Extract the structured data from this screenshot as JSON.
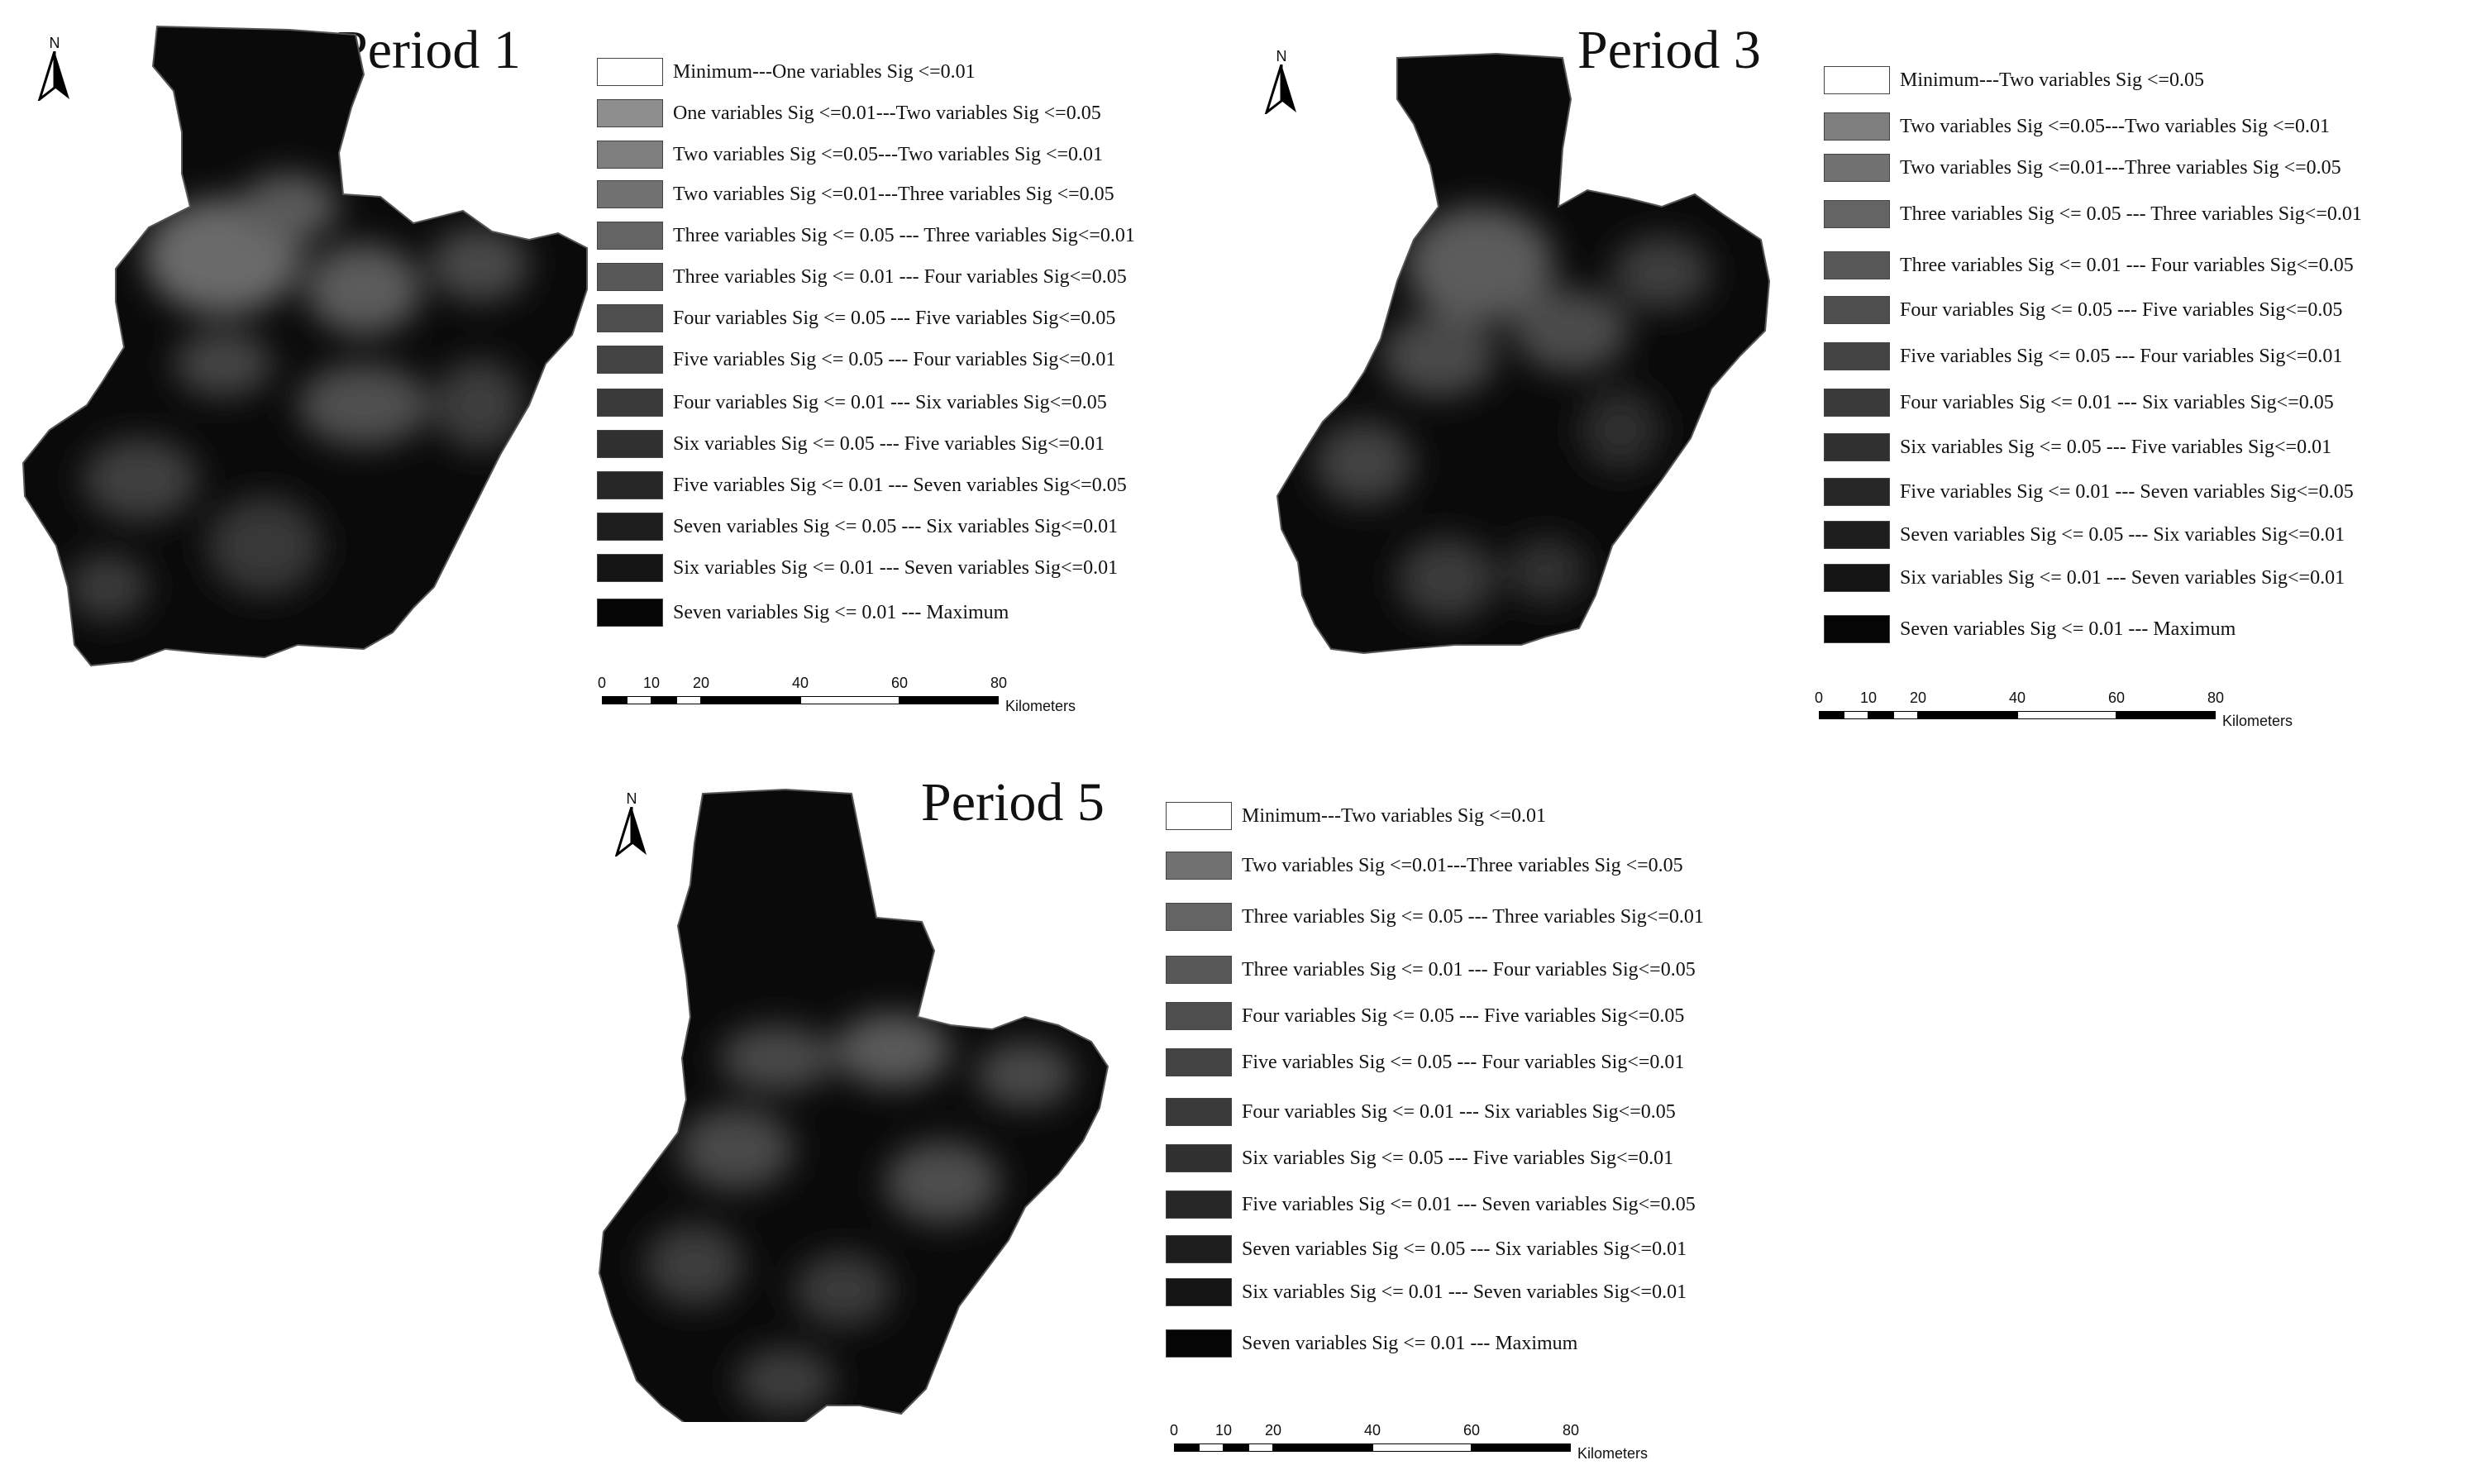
{
  "panels": {
    "p1": {
      "title": "Period 1",
      "legend": [
        {
          "label": "Minimum---One variables Sig <=0.01",
          "color": "#ffffff"
        },
        {
          "label": "One variables Sig <=0.01---Two variables Sig <=0.05",
          "color": "#8e8e8e"
        },
        {
          "label": "Two variables Sig <=0.05---Two variables Sig <=0.01",
          "color": "#7e7e7e"
        },
        {
          "label": "Two variables Sig <=0.01---Three variables Sig <=0.05",
          "color": "#717171"
        },
        {
          "label": "Three variables Sig <= 0.05 ---  Three variables Sig<=0.01",
          "color": "#646464"
        },
        {
          "label": "Three variables Sig <= 0.01 ---  Four variables Sig<=0.05",
          "color": "#585858"
        },
        {
          "label": "Four variables Sig <= 0.05 ---  Five variables Sig<=0.05",
          "color": "#4e4e4e"
        },
        {
          "label": "Five variables Sig <= 0.05 ---  Four variables Sig<=0.01",
          "color": "#444444"
        },
        {
          "label": "Four variables Sig <= 0.01 ---  Six variables Sig<=0.05",
          "color": "#3a3a3a"
        },
        {
          "label": "Six variables Sig <= 0.05 ---  Five variables Sig<=0.01",
          "color": "#303030"
        },
        {
          "label": "Five variables Sig <= 0.01 ---  Seven variables Sig<=0.05",
          "color": "#272727"
        },
        {
          "label": "Seven variables Sig <= 0.05 ---  Six variables Sig<=0.01",
          "color": "#1e1e1e"
        },
        {
          "label": "Six variables Sig <= 0.01 ---  Seven variables Sig<=0.01",
          "color": "#141414"
        },
        {
          "label": "Seven variables Sig <= 0.01 ---  Maximum",
          "color": "#050505"
        }
      ]
    },
    "p3": {
      "title": "Period 3",
      "legend": [
        {
          "label": "Minimum---Two variables Sig <=0.05",
          "color": "#ffffff"
        },
        {
          "label": "Two variables Sig <=0.05---Two variables Sig <=0.01",
          "color": "#7e7e7e"
        },
        {
          "label": "Two variables Sig <=0.01---Three variables Sig <=0.05",
          "color": "#717171"
        },
        {
          "label": "Three variables Sig <= 0.05 ---  Three variables Sig<=0.01",
          "color": "#646464"
        },
        {
          "label": "Three variables Sig <= 0.01 ---  Four variables Sig<=0.05",
          "color": "#585858"
        },
        {
          "label": "Four variables Sig <= 0.05 ---  Five variables Sig<=0.05",
          "color": "#4e4e4e"
        },
        {
          "label": "Five variables Sig <= 0.05 ---  Four variables Sig<=0.01",
          "color": "#444444"
        },
        {
          "label": "Four variables Sig <= 0.01 ---  Six variables Sig<=0.05",
          "color": "#3a3a3a"
        },
        {
          "label": "Six variables Sig <= 0.05 ---  Five variables Sig<=0.01",
          "color": "#303030"
        },
        {
          "label": "Five variables Sig <= 0.01 ---  Seven variables Sig<=0.05",
          "color": "#272727"
        },
        {
          "label": "Seven variables Sig <= 0.05 ---  Six variables Sig<=0.01",
          "color": "#1e1e1e"
        },
        {
          "label": "Six variables Sig <= 0.01 ---  Seven variables Sig<=0.01",
          "color": "#141414"
        },
        {
          "label": "Seven variables Sig <= 0.01 ---  Maximum",
          "color": "#050505"
        }
      ]
    },
    "p5": {
      "title": "Period 5",
      "legend": [
        {
          "label": "Minimum---Two variables Sig <=0.01",
          "color": "#ffffff"
        },
        {
          "label": "Two variables Sig <=0.01---Three variables Sig <=0.05",
          "color": "#717171"
        },
        {
          "label": "Three variables Sig <= 0.05 ---  Three variables Sig<=0.01",
          "color": "#646464"
        },
        {
          "label": "Three variables Sig <= 0.01 ---  Four variables Sig<=0.05",
          "color": "#585858"
        },
        {
          "label": "Four variables Sig <= 0.05 ---  Five variables Sig<=0.05",
          "color": "#4e4e4e"
        },
        {
          "label": "Five variables Sig <= 0.05 ---  Four variables Sig<=0.01",
          "color": "#444444"
        },
        {
          "label": "Four variables Sig <= 0.01 ---  Six variables Sig<=0.05",
          "color": "#3a3a3a"
        },
        {
          "label": "Six variables Sig <= 0.05 ---  Five variables Sig<=0.01",
          "color": "#303030"
        },
        {
          "label": "Five variables Sig <= 0.01 ---  Seven variables Sig<=0.05",
          "color": "#272727"
        },
        {
          "label": "Seven variables Sig <= 0.05 ---  Six variables Sig<=0.01",
          "color": "#1e1e1e"
        },
        {
          "label": "Six variables Sig <= 0.01 ---  Seven variables Sig<=0.01",
          "color": "#141414"
        },
        {
          "label": "Seven variables Sig <= 0.01 ---  Maximum",
          "color": "#050505"
        }
      ]
    }
  },
  "north_label": "N",
  "scale": {
    "ticks": [
      "0",
      "10",
      "20",
      "40",
      "60",
      "80"
    ],
    "unit": "Kilometers"
  }
}
